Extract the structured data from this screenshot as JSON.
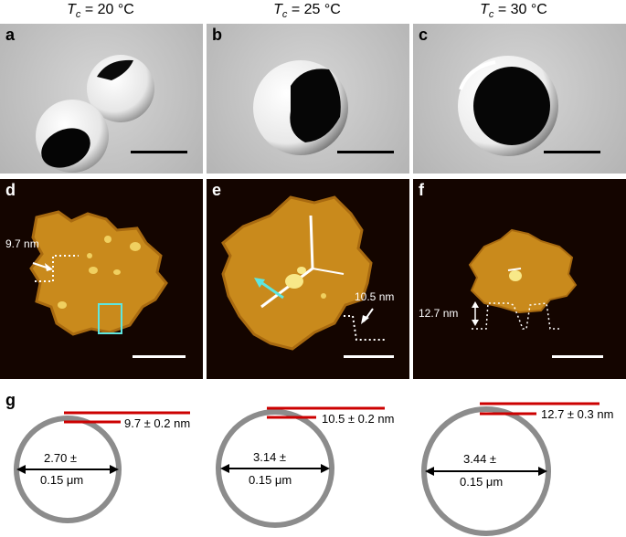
{
  "columns": [
    {
      "prefix": "T",
      "sub": "c",
      "value": " = 20 °C"
    },
    {
      "prefix": "T",
      "sub": "c",
      "value": " = 25 °C"
    },
    {
      "prefix": "T",
      "sub": "c",
      "value": " = 30 °C"
    }
  ],
  "panels": {
    "a": "a",
    "b": "b",
    "c": "c",
    "d": "d",
    "e": "e",
    "f": "f",
    "g": "g"
  },
  "afm_annotations": {
    "d_height": "9.7 nm",
    "e_height": "10.5 nm",
    "f_height": "12.7 nm"
  },
  "schematics": [
    {
      "thickness": "9.7 ± 0.2 nm",
      "diam_line1": "2.70 ±",
      "diam_line2": "0.15 μm"
    },
    {
      "thickness": "10.5 ± 0.2 nm",
      "diam_line1": "3.14 ±",
      "diam_line2": "0.15 μm"
    },
    {
      "thickness": "12.7 ± 0.3 nm",
      "diam_line1": "3.44 ±",
      "diam_line2": "0.15 μm"
    }
  ],
  "colors": {
    "shell_gray": "#8c8c8c",
    "membrane_red": "#cc0000",
    "highlight_cyan": "#5ee6e0",
    "afm_gold": "#c98a1c"
  }
}
